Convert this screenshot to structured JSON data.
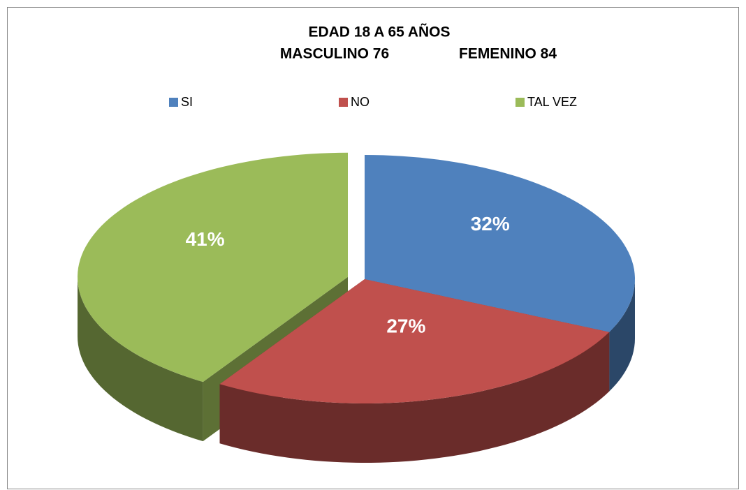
{
  "chart_data": {
    "type": "pie3d",
    "title": "EDAD 18 A 65 AÑOS",
    "subtitle": [
      "MASCULINO 76",
      "FEMENINO 84"
    ],
    "categories": [
      "SI",
      "NO",
      "TAL VEZ"
    ],
    "values": [
      32,
      27,
      41
    ],
    "value_labels": [
      "32%",
      "27%",
      "41%"
    ],
    "colors": [
      "#4f81bd",
      "#c0504d",
      "#9bbb59"
    ],
    "legend": "top"
  }
}
